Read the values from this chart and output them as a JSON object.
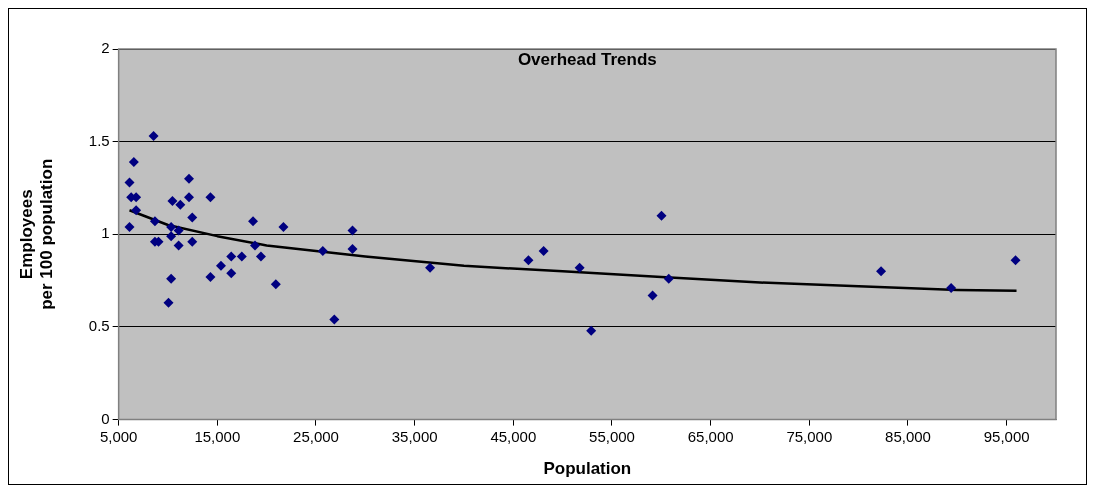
{
  "chart_data": {
    "type": "scatter",
    "title": "Overhead Trends",
    "xlabel": "Population",
    "ylabel": "Employees\nper 100 population",
    "xlim": [
      5000,
      100000
    ],
    "xticks": [
      {
        "value": 5000,
        "label": "5,000"
      },
      {
        "value": 15000,
        "label": "15,000"
      },
      {
        "value": 25000,
        "label": "25,000"
      },
      {
        "value": 35000,
        "label": "35,000"
      },
      {
        "value": 45000,
        "label": "45,000"
      },
      {
        "value": 55000,
        "label": "55,000"
      },
      {
        "value": 65000,
        "label": "65,000"
      },
      {
        "value": 75000,
        "label": "75,000"
      },
      {
        "value": 85000,
        "label": "85,000"
      },
      {
        "value": 95000,
        "label": "95,000"
      }
    ],
    "ylim": [
      0,
      2
    ],
    "yticks": [
      0,
      0.5,
      1,
      1.5,
      2
    ],
    "grid": "y",
    "legend": false,
    "series": [
      {
        "type": "scatter",
        "color": "#000080",
        "marker": "diamond",
        "x": [
          8540,
          6540,
          6100,
          6270,
          6770,
          6770,
          6100,
          8680,
          8680,
          9040,
          12130,
          12130,
          10450,
          11250,
          12460,
          10320,
          10320,
          11080,
          11080,
          12460,
          10320,
          10050,
          14300,
          14300,
          15370,
          16410,
          16410,
          17480,
          18620,
          18820,
          19420,
          20930,
          21700,
          25690,
          26860,
          28700,
          28700,
          36560,
          46530,
          48070,
          51720,
          52890,
          59110,
          60020,
          60750,
          82270,
          89370,
          95900
        ],
        "values": [
          1.53,
          1.39,
          1.28,
          1.2,
          1.2,
          1.13,
          1.04,
          1.07,
          0.96,
          0.96,
          1.3,
          1.2,
          1.18,
          1.16,
          1.09,
          1.04,
          0.99,
          1.02,
          0.94,
          0.96,
          0.76,
          0.63,
          1.2,
          0.77,
          0.83,
          0.88,
          0.79,
          0.88,
          1.07,
          0.94,
          0.88,
          0.73,
          1.04,
          0.91,
          0.54,
          1.02,
          0.92,
          0.82,
          0.86,
          0.91,
          0.82,
          0.48,
          0.67,
          1.1,
          0.76,
          0.8,
          0.71,
          0.86
        ]
      },
      {
        "type": "line",
        "color": "#000000",
        "marker": "none",
        "line_style": "solid",
        "x": [
          6100,
          10000,
          15000,
          20000,
          30000,
          40000,
          50000,
          60000,
          70000,
          80000,
          90000,
          96000
        ],
        "values": [
          1.13,
          1.05,
          0.99,
          0.94,
          0.88,
          0.83,
          0.8,
          0.77,
          0.74,
          0.72,
          0.7,
          0.695
        ]
      }
    ]
  }
}
